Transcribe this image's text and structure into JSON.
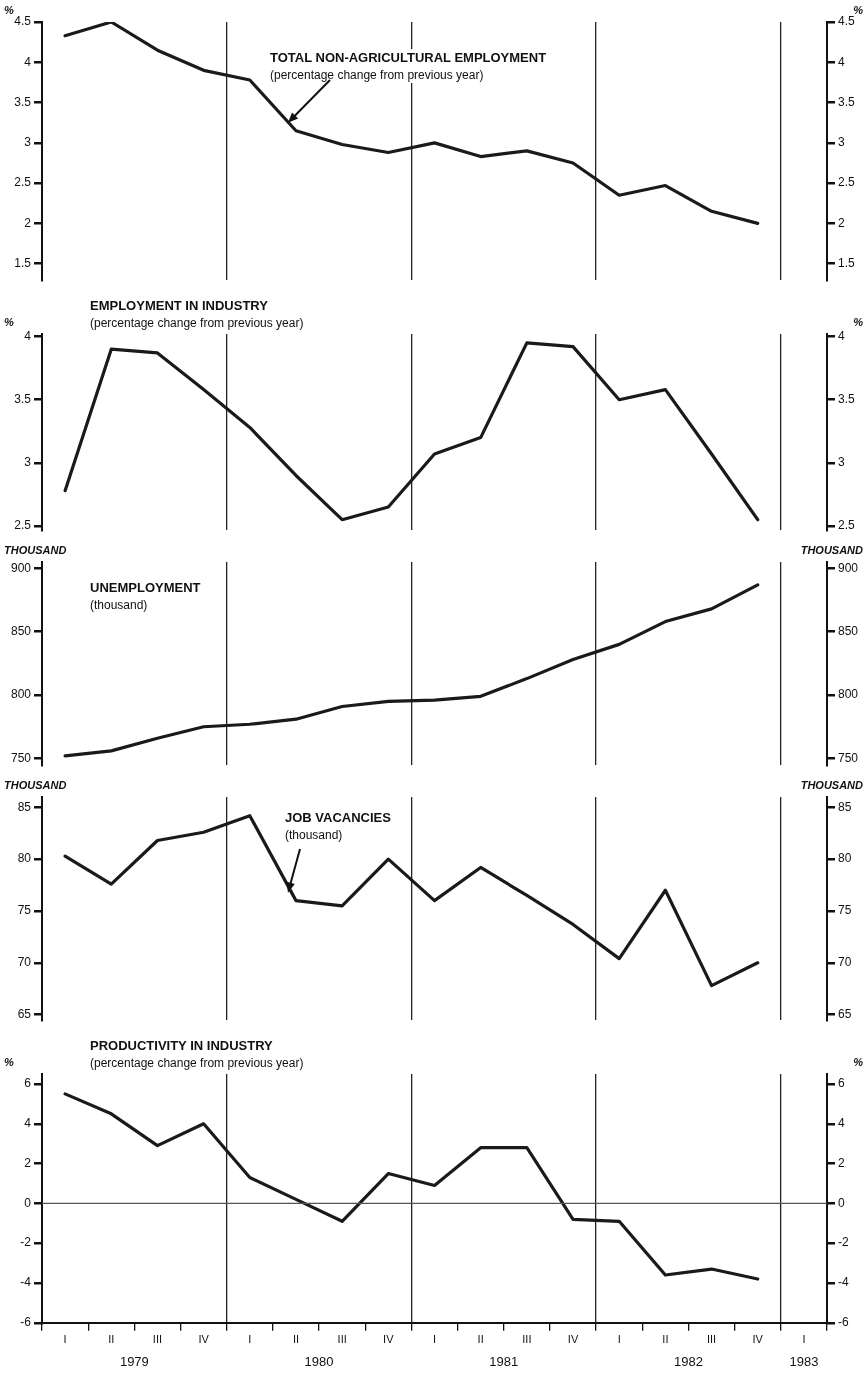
{
  "chart_data": [
    {
      "type": "line",
      "title": "TOTAL NON-AGRICULTURAL EMPLOYMENT",
      "subtitle": "(percentage change from previous year)",
      "ylabel": "%",
      "y2label": "%",
      "categories": [
        null,
        null,
        null,
        null,
        null,
        null,
        null,
        null,
        null,
        null,
        null,
        null,
        null,
        null,
        null,
        null,
        null
      ],
      "series": [
        {
          "color": "#1a1a1a",
          "values": [
            4.33,
            4.5,
            4.15,
            3.9,
            3.78,
            3.15,
            2.98,
            2.88,
            3.0,
            2.83,
            2.9,
            2.75,
            2.35,
            2.47,
            2.15,
            2.0,
            null
          ]
        }
      ],
      "ylim": [
        1.3,
        4.5
      ],
      "yticks": [
        1.5,
        2.0,
        2.5,
        3.0,
        3.5,
        4.0,
        4.5
      ],
      "y2lim": [
        1.3,
        4.5
      ],
      "y2ticks": [
        1.5,
        2.0,
        2.5,
        3.0,
        3.5,
        4.0,
        4.5
      ],
      "grid": "x",
      "legend": false,
      "marker": "none",
      "tick_labels": "y"
    },
    {
      "type": "line",
      "title": "EMPLOYMENT IN INDUSTRY",
      "subtitle": "(percentage change from previous year)",
      "ylabel": "%",
      "y2label": "%",
      "categories": [
        null,
        null,
        null,
        null,
        null,
        null,
        null,
        null,
        null,
        null,
        null,
        null,
        null,
        null,
        null,
        null,
        null
      ],
      "series": [
        {
          "color": "#1a1a1a",
          "values": [
            2.78,
            3.9,
            3.87,
            3.58,
            3.28,
            2.9,
            2.55,
            2.65,
            3.07,
            3.2,
            3.95,
            3.92,
            3.5,
            3.58,
            3.07,
            2.55,
            null
          ]
        }
      ],
      "ylim": [
        2.47,
        4.02
      ],
      "yticks": [
        2.5,
        3.0,
        3.5,
        4.0
      ],
      "y2lim": [
        2.47,
        4.02
      ],
      "y2ticks": [
        2.5,
        3.0,
        3.5,
        4.0
      ],
      "grid": "x",
      "legend": false,
      "marker": "none",
      "tick_labels": "y"
    },
    {
      "type": "line",
      "title": "UNEMPLOYMENT",
      "subtitle": "(thousand)",
      "ylabel": "THOUSAND",
      "y2label": "THOUSAND",
      "categories": [
        null,
        null,
        null,
        null,
        null,
        null,
        null,
        null,
        null,
        null,
        null,
        null,
        null,
        null,
        null,
        null,
        null
      ],
      "series": [
        {
          "color": "#1a1a1a",
          "values": [
            752,
            756,
            766,
            775,
            777,
            781,
            791,
            795,
            796,
            799,
            813,
            828,
            840,
            858,
            868,
            887,
            null
          ]
        }
      ],
      "ylim": [
        745,
        905
      ],
      "yticks": [
        750,
        800,
        850,
        900
      ],
      "y2lim": [
        745,
        905
      ],
      "y2ticks": [
        750,
        800,
        850,
        900
      ],
      "grid": "x",
      "legend": false,
      "marker": "none",
      "tick_labels": "y"
    },
    {
      "type": "line",
      "title": "JOB VACANCIES",
      "subtitle": "(thousand)",
      "ylabel": "THOUSAND",
      "y2label": "THOUSAND",
      "categories": [
        null,
        null,
        null,
        null,
        null,
        null,
        null,
        null,
        null,
        null,
        null,
        null,
        null,
        null,
        null,
        null,
        null
      ],
      "series": [
        {
          "color": "#1a1a1a",
          "values": [
            80.3,
            77.6,
            81.8,
            82.6,
            84.2,
            76.0,
            75.5,
            80.0,
            76.0,
            79.2,
            76.5,
            73.7,
            70.4,
            77.0,
            67.8,
            70.0,
            null
          ]
        }
      ],
      "ylim": [
        64.5,
        86
      ],
      "yticks": [
        65,
        70,
        75,
        80,
        85
      ],
      "y2lim": [
        64.5,
        86
      ],
      "y2ticks": [
        65,
        70,
        75,
        80,
        85
      ],
      "grid": "x",
      "legend": false,
      "marker": "none",
      "tick_labels": "y"
    },
    {
      "type": "line",
      "title": "PRODUCTIVITY IN INDUSTRY",
      "subtitle": "(percentage change from previous year)",
      "ylabel": "%",
      "y2label": "%",
      "categories": [
        "I",
        "II",
        "III",
        "IV",
        "I",
        "II",
        "III",
        "IV",
        "I",
        "II",
        "III",
        "IV",
        "I",
        "II",
        "III",
        "IV",
        "I"
      ],
      "series": [
        {
          "color": "#1a1a1a",
          "values": [
            5.5,
            4.5,
            2.9,
            4.0,
            1.3,
            0.2,
            -0.9,
            1.5,
            0.9,
            2.8,
            2.8,
            -0.8,
            -0.9,
            -3.6,
            -3.3,
            -3.8,
            null
          ]
        }
      ],
      "ylim": [
        -6,
        6.5
      ],
      "yticks": [
        -6,
        -4,
        -2,
        0,
        2,
        4,
        6
      ],
      "y2lim": [
        -6,
        6.5
      ],
      "y2ticks": [
        -6,
        -4,
        -2,
        0,
        2,
        4,
        6
      ],
      "grid": "x",
      "legend": false,
      "marker": "none",
      "ref_lines": [
        {
          "axis": "y",
          "value": 0,
          "color": "#555555"
        }
      ],
      "annotations": [
        "1979",
        "1980",
        "1981",
        "1982",
        "1983"
      ]
    }
  ]
}
